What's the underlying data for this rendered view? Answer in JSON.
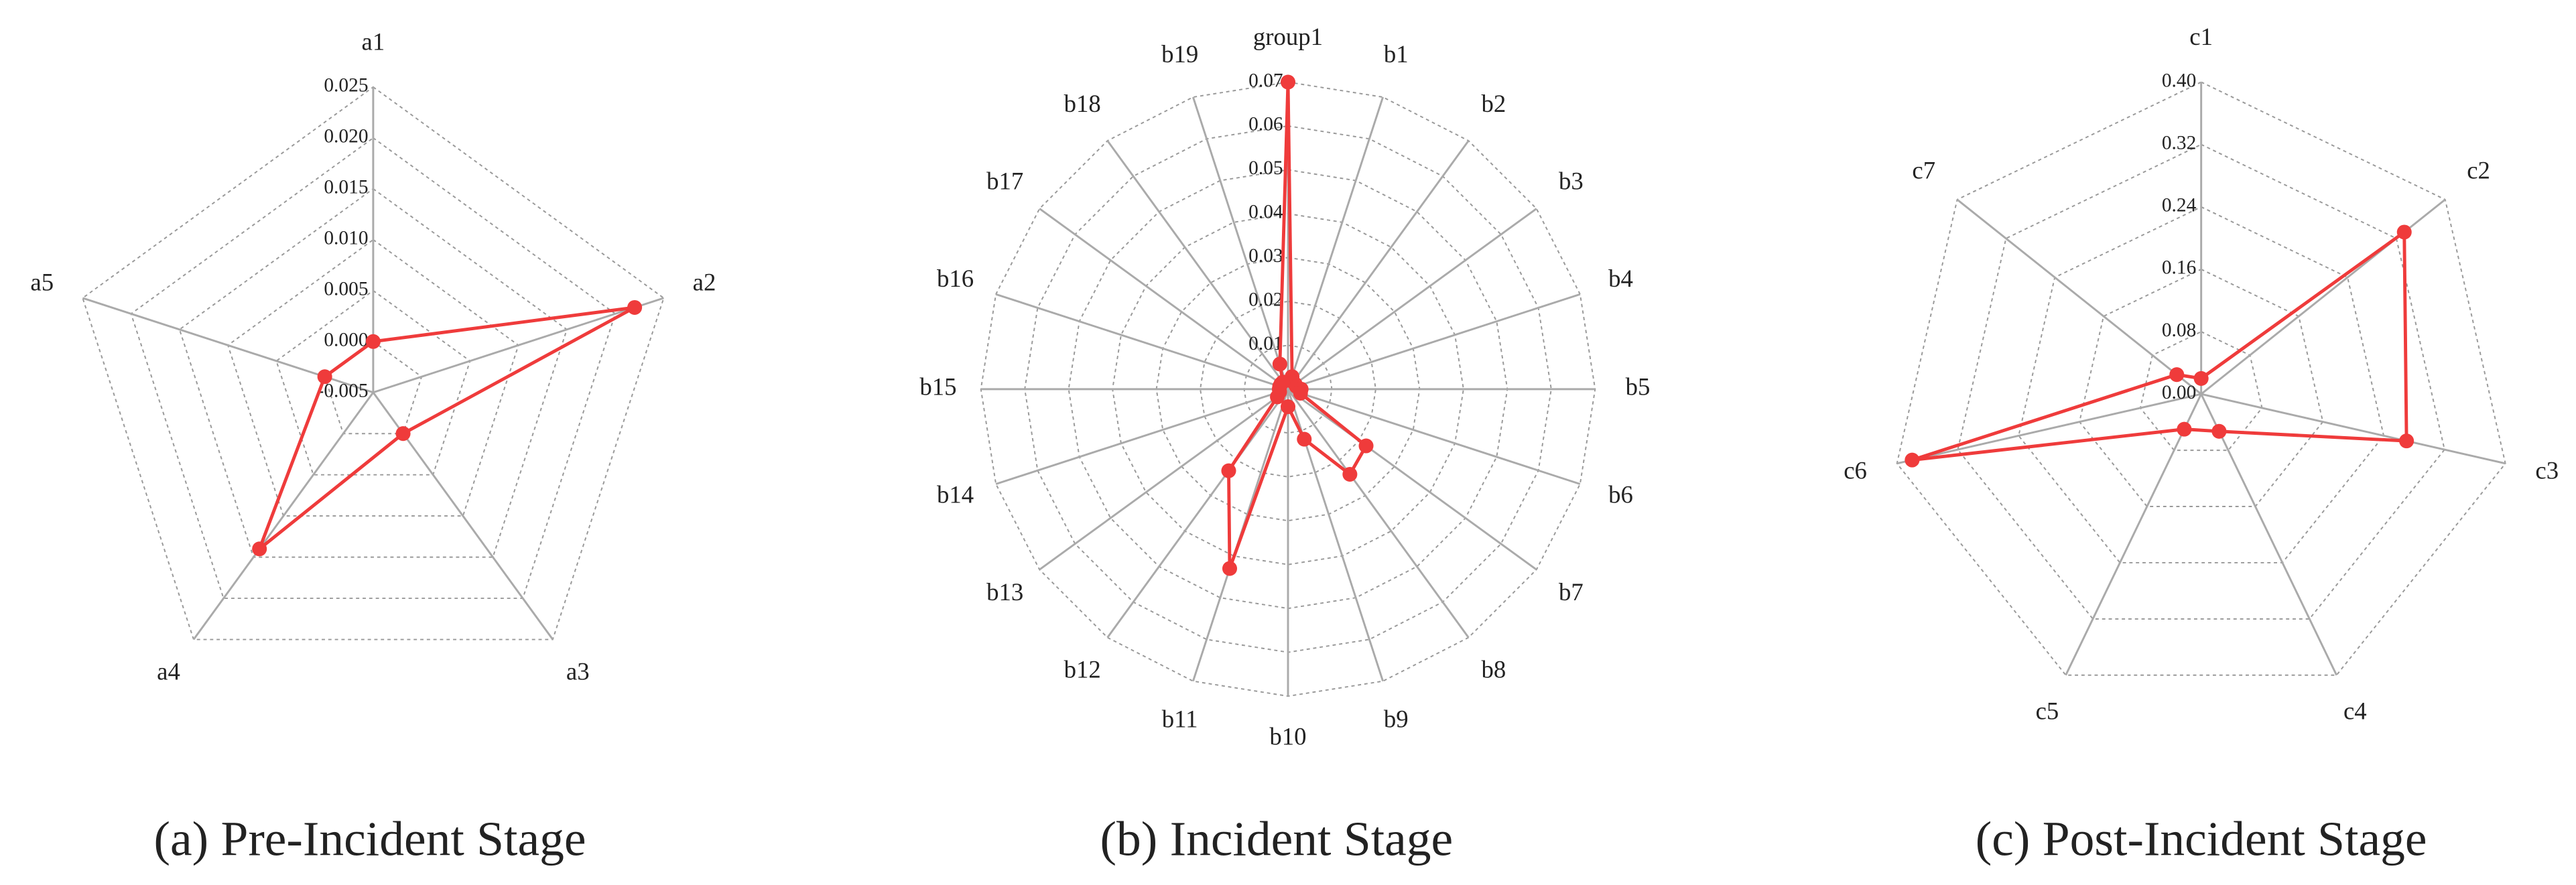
{
  "chart_data": [
    {
      "type": "radar",
      "caption": "(a) Pre-Incident Stage",
      "categories": [
        "a1",
        "a2",
        "a3",
        "a4",
        "a5"
      ],
      "values": [
        0.0,
        0.022,
        0.0,
        0.014,
        0.0
      ],
      "color": "#ef3b3b",
      "rlim": [
        -0.005,
        0.025
      ],
      "rticks": [
        {
          "value": -0.005,
          "label": "-0.005"
        },
        {
          "value": 0,
          "label": "0.000"
        },
        {
          "value": 0.005,
          "label": "0.005"
        },
        {
          "value": 0.01,
          "label": "0.010"
        },
        {
          "value": 0.015,
          "label": "0.015"
        },
        {
          "value": 0.02,
          "label": "0.020"
        },
        {
          "value": 0.025,
          "label": "0.025"
        }
      ],
      "grid": true
    },
    {
      "type": "radar",
      "caption": "(b) Incident Stage",
      "categories": [
        "group1",
        "b1",
        "b2",
        "b3",
        "b4",
        "b5",
        "b6",
        "b7",
        "b8",
        "b9",
        "b10",
        "b11",
        "b12",
        "b13",
        "b14",
        "b15",
        "b16",
        "b17",
        "b18",
        "b19"
      ],
      "values": [
        0.07,
        0.003,
        0.002,
        0.002,
        0.002,
        0.003,
        0.003,
        0.022,
        0.024,
        0.012,
        0.004,
        0.043,
        0.023,
        0.003,
        0.002,
        0.002,
        0.002,
        0.002,
        0.002,
        0.006
      ],
      "color": "#ef3b3b",
      "rlim": [
        0,
        0.07
      ],
      "rticks": [
        0,
        0.01,
        0.02,
        0.03,
        0.04,
        0.05,
        0.06,
        0.07
      ],
      "grid": true
    },
    {
      "type": "radar",
      "caption": "(c) Post-Incident Stage",
      "categories": [
        "c1",
        "c2",
        "c3",
        "c4",
        "c5",
        "c6",
        "c7"
      ],
      "values": [
        0.02,
        0.333,
        0.27,
        0.053,
        0.05,
        0.38,
        0.04
      ],
      "color": "#ef3b3b",
      "rlim": [
        0,
        0.4
      ],
      "rticks": [
        {
          "value": 0,
          "label": "0.00"
        },
        {
          "value": 0.08,
          "label": "0.08"
        },
        {
          "value": 0.16,
          "label": "0.16"
        },
        {
          "value": 0.24,
          "label": "0.24"
        },
        {
          "value": 0.32,
          "label": "0.32"
        },
        {
          "value": 0.4,
          "label": "0.40"
        }
      ],
      "grid": true
    }
  ]
}
